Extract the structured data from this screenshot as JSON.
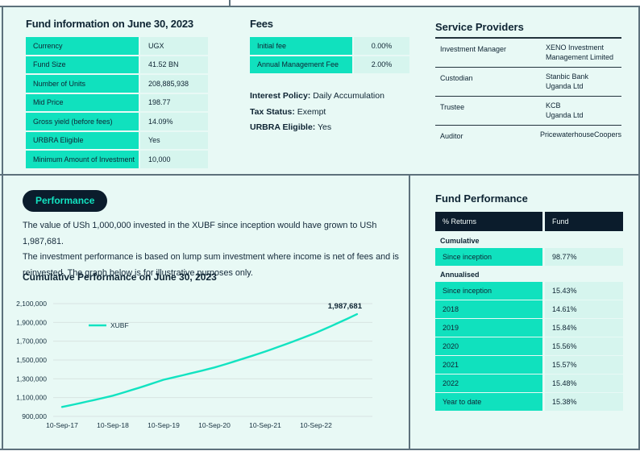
{
  "colors": {
    "teal": "#10E1BE",
    "navy": "#0B1C2C",
    "light_cell": "#D6F5EE",
    "background": "#E8F9F5",
    "divider": "#5D717C"
  },
  "fund_info": {
    "title": "Fund information on June 30, 2023",
    "rows": [
      {
        "label": "Currency",
        "value": "UGX"
      },
      {
        "label": "Fund Size",
        "value": "41.52 BN"
      },
      {
        "label": "Number of Units",
        "value": "208,885,938"
      },
      {
        "label": "Mid Price",
        "value": "198.77"
      },
      {
        "label": "Gross yield (before fees)",
        "value": "14.09%"
      },
      {
        "label": "URBRA Eligible",
        "value": "Yes"
      },
      {
        "label": "Minimum Amount of Investment",
        "value": "10,000"
      }
    ]
  },
  "fees": {
    "title": "Fees",
    "rows": [
      {
        "label": "Initial fee",
        "value": "0.00%"
      },
      {
        "label": "Annual Management Fee",
        "value": "2.00%"
      }
    ],
    "policies": [
      {
        "label": "Interest Policy:",
        "value": "Daily Accumulation"
      },
      {
        "label": "Tax Status:",
        "value": "Exempt"
      },
      {
        "label": "URBRA Eligible:",
        "value": "Yes"
      }
    ]
  },
  "service_providers": {
    "title": "Service Providers",
    "rows": [
      {
        "label": "Investment Manager",
        "lines": [
          "XENO Investment",
          "Management Limited"
        ]
      },
      {
        "label": "Custodian",
        "lines": [
          "Stanbic Bank",
          "Uganda Ltd"
        ]
      },
      {
        "label": "Trustee",
        "lines": [
          "KCB",
          "Uganda Ltd"
        ]
      },
      {
        "label": "Auditor",
        "lines": [
          "PricewaterhouseCoopers"
        ]
      }
    ]
  },
  "performance": {
    "badge": "Performance",
    "description_lines": [
      "The value of USh 1,000,000 invested in the XUBF since inception would have grown to USh 1,987,681.",
      "The investment performance is based on lump sum investment where income is net of fees and is",
      "reinvested. The graph below is for illustrative purposes only."
    ],
    "chart_title": "Cumulative Performance on June 30, 2023"
  },
  "chart_data": {
    "type": "line",
    "title": "Cumulative Performance on June 30, 2023",
    "line_color": "#12E3C1",
    "grid": true,
    "legend_position": "top-left-inside",
    "ylim": [
      900000,
      2100000
    ],
    "y_ticks": [
      900000,
      1100000,
      1300000,
      1500000,
      1700000,
      1900000,
      2100000
    ],
    "x_tick_labels": [
      "10-Sep-17",
      "10-Sep-18",
      "10-Sep-19",
      "10-Sep-20",
      "10-Sep-21",
      "10-Sep-22"
    ],
    "x_tick_months": [
      0,
      12,
      24,
      36,
      48,
      60
    ],
    "x": [
      "10-Sep-17",
      "10-Sep-18",
      "10-Sep-19",
      "10-Sep-20",
      "10-Sep-21",
      "10-Sep-22",
      "30-Jun-23"
    ],
    "x_months": [
      0,
      12,
      24,
      36,
      48,
      60,
      69.7
    ],
    "series": [
      {
        "name": "XUBF",
        "values": [
          1000000,
          1120000,
          1290000,
          1420000,
          1590000,
          1790000,
          1987681
        ]
      }
    ],
    "end_label": "1,987,681"
  },
  "fund_performance": {
    "title": "Fund Performance",
    "header": {
      "col1": "% Returns",
      "col2": "Fund"
    },
    "rows": [
      {
        "type": "section",
        "label": "Cumulative"
      },
      {
        "type": "data",
        "label": "Since inception",
        "value": "98.77%"
      },
      {
        "type": "section",
        "label": "Annualised"
      },
      {
        "type": "data",
        "label": "Since inception",
        "value": "15.43%"
      },
      {
        "type": "data",
        "label": "2018",
        "value": "14.61%"
      },
      {
        "type": "data",
        "label": "2019",
        "value": "15.84%"
      },
      {
        "type": "data",
        "label": "2020",
        "value": "15.56%"
      },
      {
        "type": "data",
        "label": "2021",
        "value": "15.57%"
      },
      {
        "type": "data",
        "label": "2022",
        "value": "15.48%"
      },
      {
        "type": "data",
        "label": "Year to date",
        "value": "15.38%"
      }
    ]
  }
}
